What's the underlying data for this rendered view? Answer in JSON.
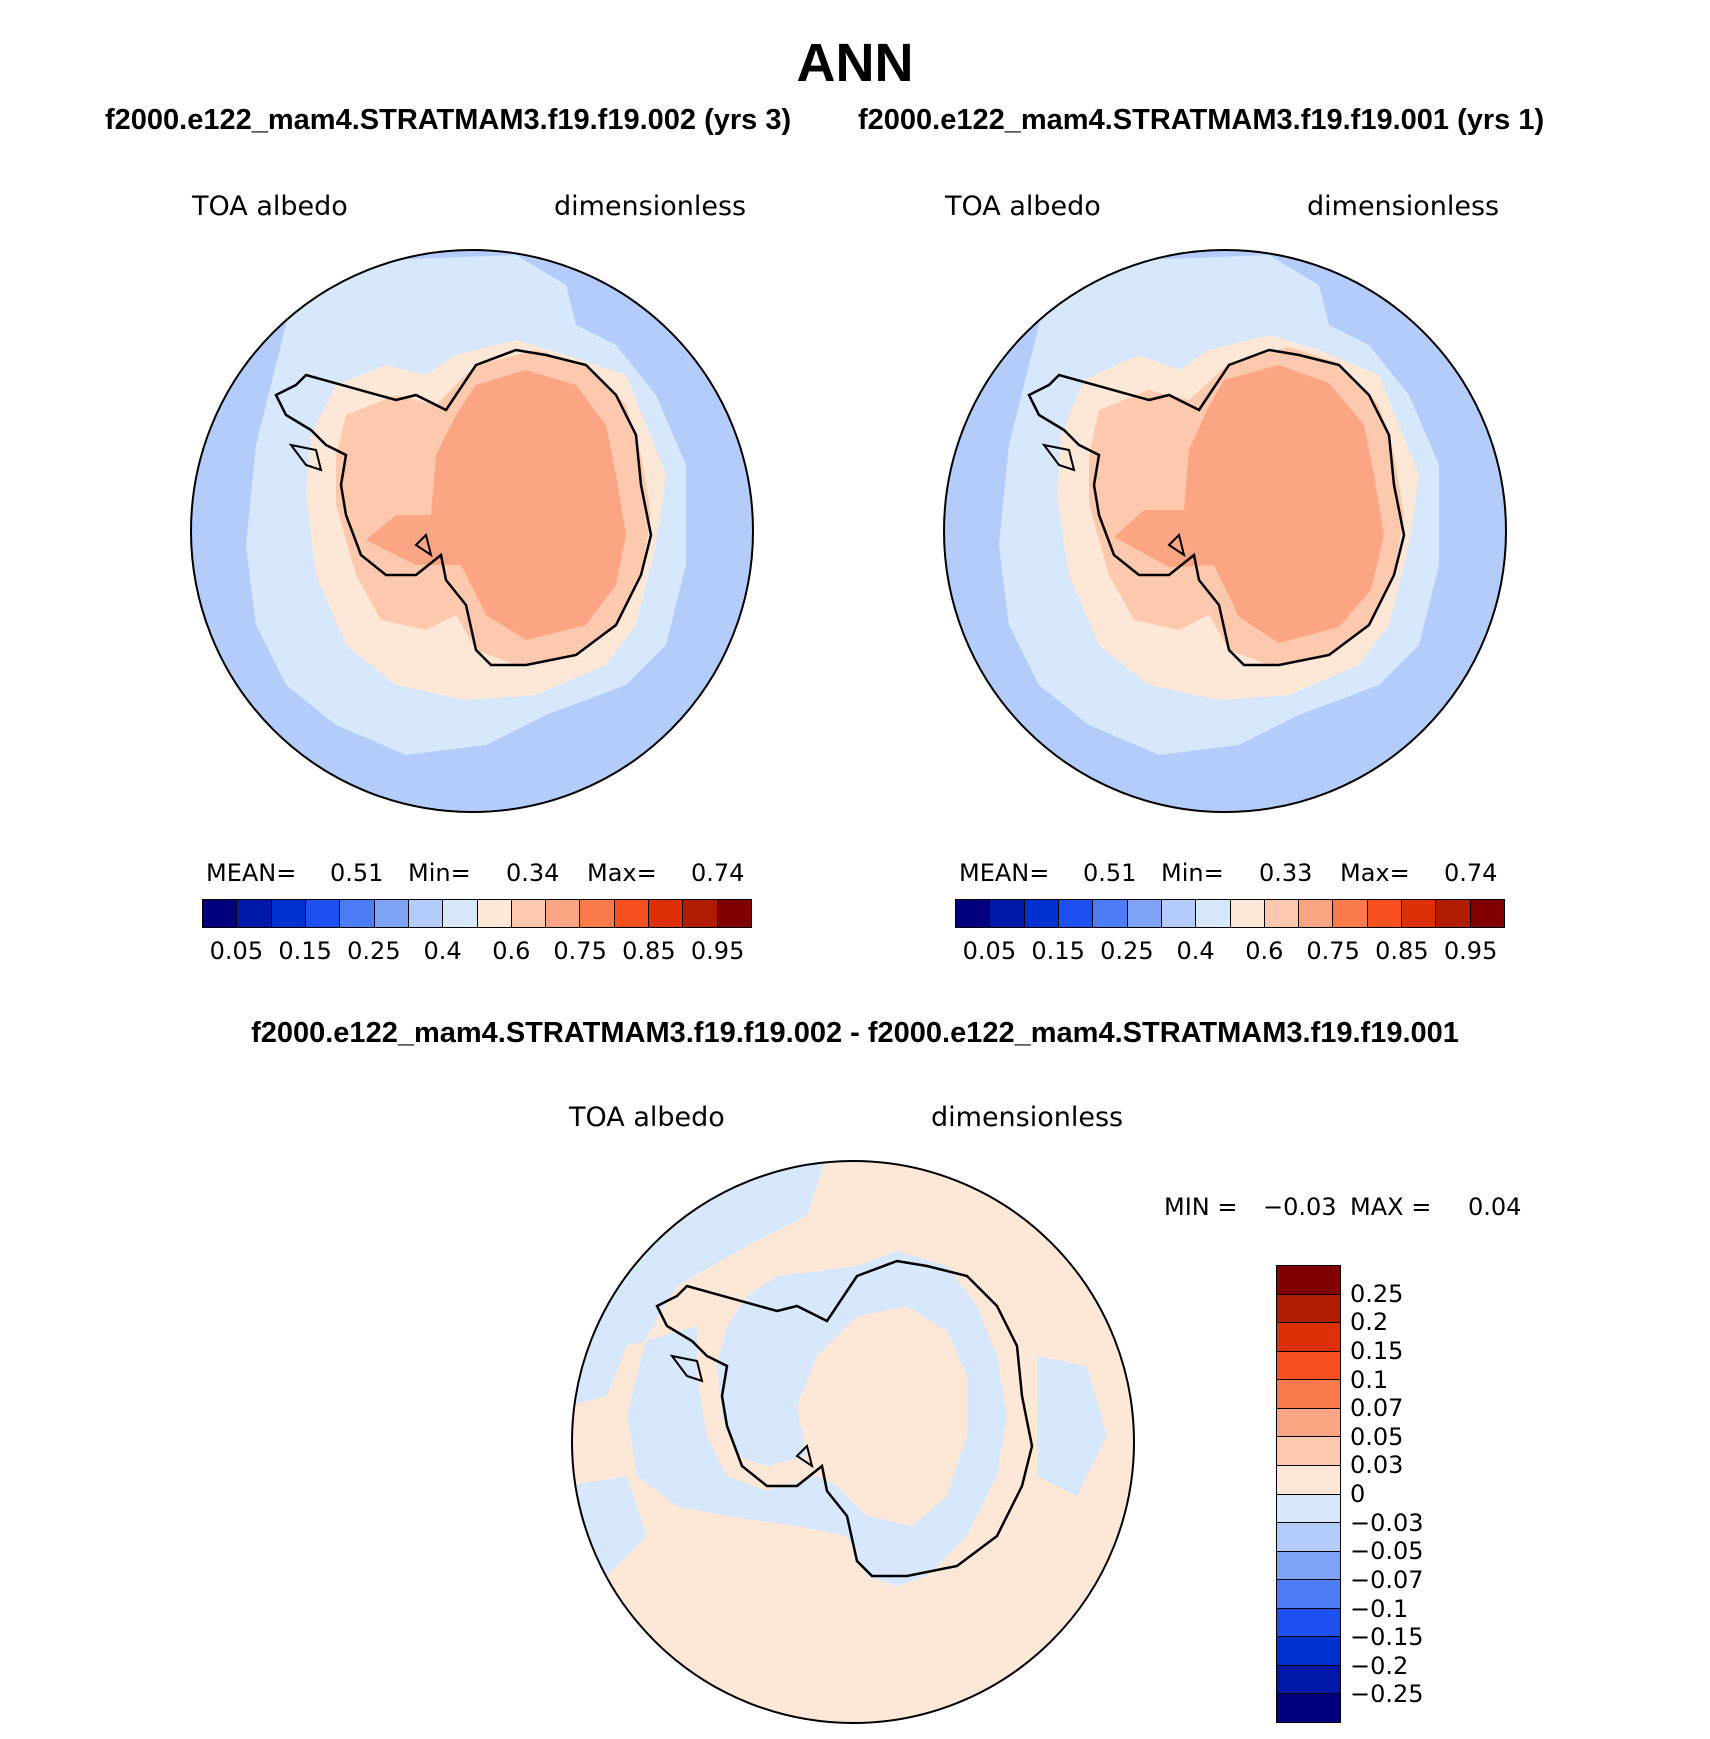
{
  "title": "ANN",
  "panels": [
    {
      "case_label": "f2000.e122_mam4.STRATMAM3.f19.f19.002 (yrs 3)",
      "var_label": "TOA albedo",
      "units_label": "dimensionless",
      "stats": {
        "mean_label": "MEAN=",
        "mean": "0.51",
        "min_label": "Min=",
        "min": "0.34",
        "max_label": "Max=",
        "max": "0.74"
      }
    },
    {
      "case_label": "f2000.e122_mam4.STRATMAM3.f19.f19.001 (yrs 1)",
      "var_label": "TOA albedo",
      "units_label": "dimensionless",
      "stats": {
        "mean_label": "MEAN=",
        "mean": "0.51",
        "min_label": "Min=",
        "min": "0.33",
        "max_label": "Max=",
        "max": "0.74"
      }
    }
  ],
  "diff_panel": {
    "title": "f2000.e122_mam4.STRATMAM3.f19.f19.002 - f2000.e122_mam4.STRATMAM3.f19.f19.001",
    "var_label": "TOA albedo",
    "units_label": "dimensionless",
    "stats": {
      "min_label": "MIN =",
      "min": "−0.03",
      "max_label": "MAX =",
      "max": "0.04"
    }
  },
  "colorbar_main": {
    "colors": [
      "#00007f",
      "#0018a8",
      "#0030d0",
      "#1c50f0",
      "#4c7cf6",
      "#80a4f5",
      "#b3ccfa",
      "#d8e8fc",
      "#fde8d8",
      "#fdc9ae",
      "#fba584",
      "#fa7a4c",
      "#f75020",
      "#dd3008",
      "#b01c00",
      "#800000"
    ],
    "ticks": [
      "0.05",
      "0.15",
      "0.25",
      "0.4",
      "0.6",
      "0.75",
      "0.85",
      "0.95"
    ]
  },
  "colorbar_diff": {
    "colors": [
      "#800000",
      "#b01c00",
      "#dd3008",
      "#f75020",
      "#fa7a4c",
      "#fba584",
      "#fdc9ae",
      "#fde8d8",
      "#d8e8fc",
      "#b3ccfa",
      "#80a4f5",
      "#4c7cf6",
      "#1c50f0",
      "#0030d0",
      "#0018a8",
      "#00007f"
    ],
    "ticks": [
      "0.25",
      "0.2",
      "0.15",
      "0.1",
      "0.07",
      "0.05",
      "0.03",
      "0",
      "−0.03",
      "−0.05",
      "−0.07",
      "−0.1",
      "−0.15",
      "−0.2",
      "−0.25"
    ]
  },
  "map_colors": {
    "ocean_far": "#b3ccfa",
    "ocean_near": "#d8e8fc",
    "sea_ice": "#fde8d8",
    "coast_ice": "#fdc9ae",
    "interior": "#fba584",
    "diff_positive": "#fde8d8",
    "diff_negative": "#d8e8fc"
  }
}
